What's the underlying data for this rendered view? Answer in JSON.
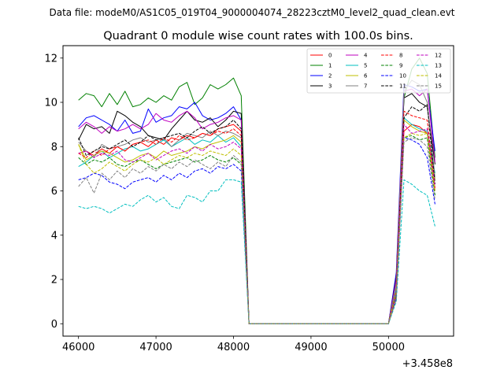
{
  "suptitle": "Data file: modeM0/AS1C05_019T04_9000004074_28223cztM0_level2_quad_clean.evt",
  "chart_data": {
    "type": "line",
    "title": "Quadrant 0 module wise count rates with 100.0s bins.",
    "xlabel": "",
    "ylabel": "",
    "offset_text": "+3.458e8",
    "xlim": [
      45800,
      50840
    ],
    "ylim": [
      -0.56,
      12.56
    ],
    "xticks": [
      46000,
      47000,
      48000,
      49000,
      50000
    ],
    "xtick_labels": [
      "46000",
      "47000",
      "48000",
      "49000",
      "50000"
    ],
    "yticks": [
      0,
      2,
      4,
      6,
      8,
      10,
      12
    ],
    "ytick_labels": [
      "0",
      "2",
      "4",
      "6",
      "8",
      "10",
      "12"
    ],
    "grid": false,
    "legend_position": "top-right",
    "legend_columns": 4,
    "x": [
      46000,
      46100,
      46200,
      46300,
      46400,
      46500,
      46600,
      46700,
      46800,
      46900,
      47000,
      47100,
      47200,
      47300,
      47400,
      47500,
      47600,
      47700,
      47800,
      47900,
      48000,
      48100,
      48200,
      48300,
      48400,
      48500,
      48600,
      48700,
      48800,
      48900,
      49000,
      49100,
      49200,
      49300,
      49400,
      49500,
      49600,
      49700,
      49800,
      49900,
      50000,
      50100,
      50200,
      50300,
      50400,
      50500,
      50600
    ],
    "series": [
      {
        "name": "0",
        "color": "#ff0000",
        "dash": "solid",
        "values": [
          7.7,
          7.8,
          7.6,
          7.9,
          7.7,
          8.0,
          7.8,
          8.1,
          8.2,
          8.0,
          8.3,
          8.1,
          8.4,
          8.3,
          8.5,
          8.4,
          8.6,
          8.5,
          8.8,
          8.9,
          9.0,
          8.7,
          0,
          0,
          0,
          0,
          0,
          0,
          0,
          0,
          0,
          0,
          0,
          0,
          0,
          0,
          0,
          0,
          0,
          0,
          0,
          1.2,
          8.7,
          9.0,
          8.9,
          8.6,
          6.0
        ]
      },
      {
        "name": "1",
        "color": "#008000",
        "dash": "solid",
        "values": [
          10.1,
          10.4,
          10.3,
          9.8,
          10.4,
          9.9,
          10.5,
          9.8,
          9.9,
          10.2,
          10.0,
          10.3,
          10.1,
          10.7,
          10.9,
          9.9,
          10.2,
          10.8,
          10.6,
          10.8,
          11.1,
          10.3,
          0,
          0,
          0,
          0,
          0,
          0,
          0,
          0,
          0,
          0,
          0,
          0,
          0,
          0,
          0,
          0,
          0,
          0,
          0,
          2.0,
          10.2,
          11.5,
          12.0,
          11.3,
          7.5
        ]
      },
      {
        "name": "2",
        "color": "#0000ff",
        "dash": "solid",
        "values": [
          8.9,
          9.3,
          9.4,
          9.2,
          9.0,
          8.7,
          9.2,
          8.6,
          8.7,
          9.7,
          9.1,
          9.3,
          9.4,
          9.8,
          9.7,
          10.0,
          9.4,
          9.2,
          9.3,
          9.5,
          9.8,
          9.2,
          0,
          0,
          0,
          0,
          0,
          0,
          0,
          0,
          0,
          0,
          0,
          0,
          0,
          0,
          0,
          0,
          0,
          0,
          0,
          2.3,
          10.8,
          10.7,
          10.5,
          10.6,
          7.8
        ]
      },
      {
        "name": "3",
        "color": "#000000",
        "dash": "solid",
        "values": [
          8.3,
          9.0,
          8.8,
          8.9,
          8.6,
          9.6,
          9.4,
          9.1,
          8.9,
          8.5,
          8.4,
          8.3,
          8.8,
          9.2,
          9.6,
          9.2,
          9.1,
          9.3,
          8.9,
          9.2,
          9.6,
          9.5,
          0,
          0,
          0,
          0,
          0,
          0,
          0,
          0,
          0,
          0,
          0,
          0,
          0,
          0,
          0,
          0,
          0,
          0,
          0,
          2.1,
          10.2,
          10.4,
          10.0,
          9.8,
          7.2
        ]
      },
      {
        "name": "4",
        "color": "#bf00bf",
        "dash": "solid",
        "values": [
          8.8,
          9.1,
          8.9,
          8.6,
          8.9,
          8.7,
          8.8,
          9.0,
          8.8,
          9.0,
          9.5,
          9.2,
          9.1,
          9.4,
          9.6,
          9.3,
          8.8,
          9.0,
          9.1,
          9.3,
          9.4,
          9.2,
          0,
          0,
          0,
          0,
          0,
          0,
          0,
          0,
          0,
          0,
          0,
          0,
          0,
          0,
          0,
          0,
          0,
          0,
          0,
          2.0,
          10.5,
          10.6,
          10.3,
          10.6,
          7.3
        ]
      },
      {
        "name": "5",
        "color": "#00bfbf",
        "dash": "solid",
        "values": [
          7.1,
          7.3,
          7.6,
          7.8,
          7.5,
          7.7,
          7.9,
          8.0,
          7.8,
          7.9,
          8.1,
          8.3,
          8.0,
          8.2,
          8.4,
          8.1,
          8.3,
          8.2,
          8.5,
          8.2,
          8.4,
          8.0,
          0,
          0,
          0,
          0,
          0,
          0,
          0,
          0,
          0,
          0,
          0,
          0,
          0,
          0,
          0,
          0,
          0,
          0,
          0,
          1.6,
          9.3,
          9.0,
          8.8,
          8.7,
          6.8
        ]
      },
      {
        "name": "6",
        "color": "#bfbf00",
        "dash": "solid",
        "values": [
          8.1,
          7.4,
          7.6,
          7.8,
          7.7,
          7.5,
          7.3,
          7.4,
          7.6,
          7.7,
          7.5,
          7.8,
          7.6,
          7.7,
          7.8,
          8.0,
          7.9,
          8.1,
          8.2,
          8.3,
          8.5,
          8.2,
          0,
          0,
          0,
          0,
          0,
          0,
          0,
          0,
          0,
          0,
          0,
          0,
          0,
          0,
          0,
          0,
          0,
          0,
          0,
          1.4,
          9.2,
          8.9,
          8.7,
          8.6,
          6.5
        ]
      },
      {
        "name": "7",
        "color": "#808080",
        "dash": "solid",
        "values": [
          8.2,
          7.8,
          7.5,
          8.1,
          7.9,
          8.0,
          8.1,
          8.3,
          8.4,
          8.2,
          8.3,
          8.4,
          8.0,
          8.3,
          8.6,
          8.5,
          8.4,
          8.7,
          8.5,
          8.7,
          8.6,
          8.4,
          0,
          0,
          0,
          0,
          0,
          0,
          0,
          0,
          0,
          0,
          0,
          0,
          0,
          0,
          0,
          0,
          0,
          0,
          0,
          1.8,
          10.5,
          11.0,
          10.8,
          10.0,
          6.6
        ]
      },
      {
        "name": "8",
        "color": "#ff0000",
        "dash": "dashed",
        "values": [
          7.7,
          7.5,
          7.8,
          7.6,
          7.9,
          8.0,
          7.8,
          8.1,
          8.2,
          8.3,
          8.1,
          8.4,
          8.2,
          8.5,
          8.3,
          8.4,
          8.6,
          8.5,
          8.7,
          8.6,
          8.8,
          8.5,
          0,
          0,
          0,
          0,
          0,
          0,
          0,
          0,
          0,
          0,
          0,
          0,
          0,
          0,
          0,
          0,
          0,
          0,
          0,
          1.5,
          9.6,
          9.4,
          9.3,
          9.2,
          6.1
        ]
      },
      {
        "name": "9",
        "color": "#008000",
        "dash": "dashed",
        "values": [
          7.5,
          7.2,
          7.4,
          7.3,
          7.5,
          7.2,
          7.1,
          7.3,
          7.4,
          7.2,
          7.0,
          7.2,
          7.3,
          7.4,
          7.5,
          7.3,
          7.4,
          7.6,
          7.4,
          7.3,
          7.5,
          7.2,
          0,
          0,
          0,
          0,
          0,
          0,
          0,
          0,
          0,
          0,
          0,
          0,
          0,
          0,
          0,
          0,
          0,
          0,
          0,
          1.3,
          8.4,
          8.5,
          8.3,
          8.4,
          5.8
        ]
      },
      {
        "name": "10",
        "color": "#0000ff",
        "dash": "dashed",
        "values": [
          6.5,
          6.6,
          6.8,
          6.7,
          6.4,
          6.3,
          6.1,
          6.4,
          6.5,
          6.6,
          6.4,
          6.7,
          6.5,
          6.8,
          6.6,
          6.9,
          7.0,
          6.8,
          7.1,
          7.0,
          7.2,
          6.9,
          0,
          0,
          0,
          0,
          0,
          0,
          0,
          0,
          0,
          0,
          0,
          0,
          0,
          0,
          0,
          0,
          0,
          0,
          0,
          1.2,
          8.4,
          8.3,
          8.1,
          7.5,
          5.4
        ]
      },
      {
        "name": "11",
        "color": "#000000",
        "dash": "dashed",
        "values": [
          8.4,
          7.6,
          7.8,
          8.0,
          7.9,
          8.1,
          8.3,
          8.0,
          8.2,
          8.5,
          8.3,
          8.4,
          8.5,
          8.6,
          8.4,
          8.7,
          8.9,
          8.6,
          8.8,
          8.9,
          9.2,
          8.8,
          0,
          0,
          0,
          0,
          0,
          0,
          0,
          0,
          0,
          0,
          0,
          0,
          0,
          0,
          0,
          0,
          0,
          0,
          0,
          1.4,
          9.3,
          9.8,
          9.6,
          9.9,
          6.3
        ]
      },
      {
        "name": "12",
        "color": "#bf00bf",
        "dash": "dashed",
        "values": [
          7.7,
          7.8,
          7.5,
          7.7,
          7.6,
          7.8,
          7.4,
          7.3,
          7.5,
          7.7,
          7.4,
          7.6,
          7.8,
          7.9,
          7.7,
          8.0,
          7.8,
          8.1,
          7.9,
          8.0,
          8.2,
          7.9,
          0,
          0,
          0,
          0,
          0,
          0,
          0,
          0,
          0,
          0,
          0,
          0,
          0,
          0,
          0,
          0,
          0,
          0,
          0,
          1.4,
          9.0,
          8.6,
          8.7,
          8.8,
          6.2
        ]
      },
      {
        "name": "13",
        "color": "#00bfbf",
        "dash": "dashed",
        "values": [
          5.3,
          5.2,
          5.3,
          5.2,
          5.0,
          5.2,
          5.4,
          5.3,
          5.6,
          5.8,
          5.5,
          5.7,
          5.3,
          5.2,
          5.8,
          5.7,
          5.5,
          6.0,
          6.0,
          6.5,
          6.5,
          6.4,
          0,
          0,
          0,
          0,
          0,
          0,
          0,
          0,
          0,
          0,
          0,
          0,
          0,
          0,
          0,
          0,
          0,
          0,
          0,
          1.0,
          6.5,
          6.3,
          6.0,
          5.8,
          4.4
        ]
      },
      {
        "name": "14",
        "color": "#bfbf00",
        "dash": "dashed",
        "values": [
          8.1,
          7.2,
          6.8,
          7.0,
          7.3,
          7.1,
          6.9,
          7.2,
          7.4,
          7.3,
          7.5,
          7.2,
          7.4,
          7.6,
          7.5,
          7.7,
          7.6,
          7.8,
          7.7,
          7.6,
          7.9,
          7.6,
          0,
          0,
          0,
          0,
          0,
          0,
          0,
          0,
          0,
          0,
          0,
          0,
          0,
          0,
          0,
          0,
          0,
          0,
          0,
          1.4,
          8.4,
          8.6,
          8.5,
          8.6,
          6.0
        ]
      },
      {
        "name": "15",
        "color": "#808080",
        "dash": "dashed",
        "values": [
          6.2,
          6.6,
          5.9,
          6.8,
          6.5,
          6.9,
          6.6,
          7.0,
          6.8,
          7.1,
          6.9,
          7.2,
          7.0,
          7.3,
          7.1,
          7.4,
          7.2,
          7.0,
          7.3,
          7.1,
          7.6,
          7.3,
          0,
          0,
          0,
          0,
          0,
          0,
          0,
          0,
          0,
          0,
          0,
          0,
          0,
          0,
          0,
          0,
          0,
          0,
          0,
          1.1,
          8.2,
          8.4,
          8.3,
          8.0,
          5.6
        ]
      }
    ]
  }
}
